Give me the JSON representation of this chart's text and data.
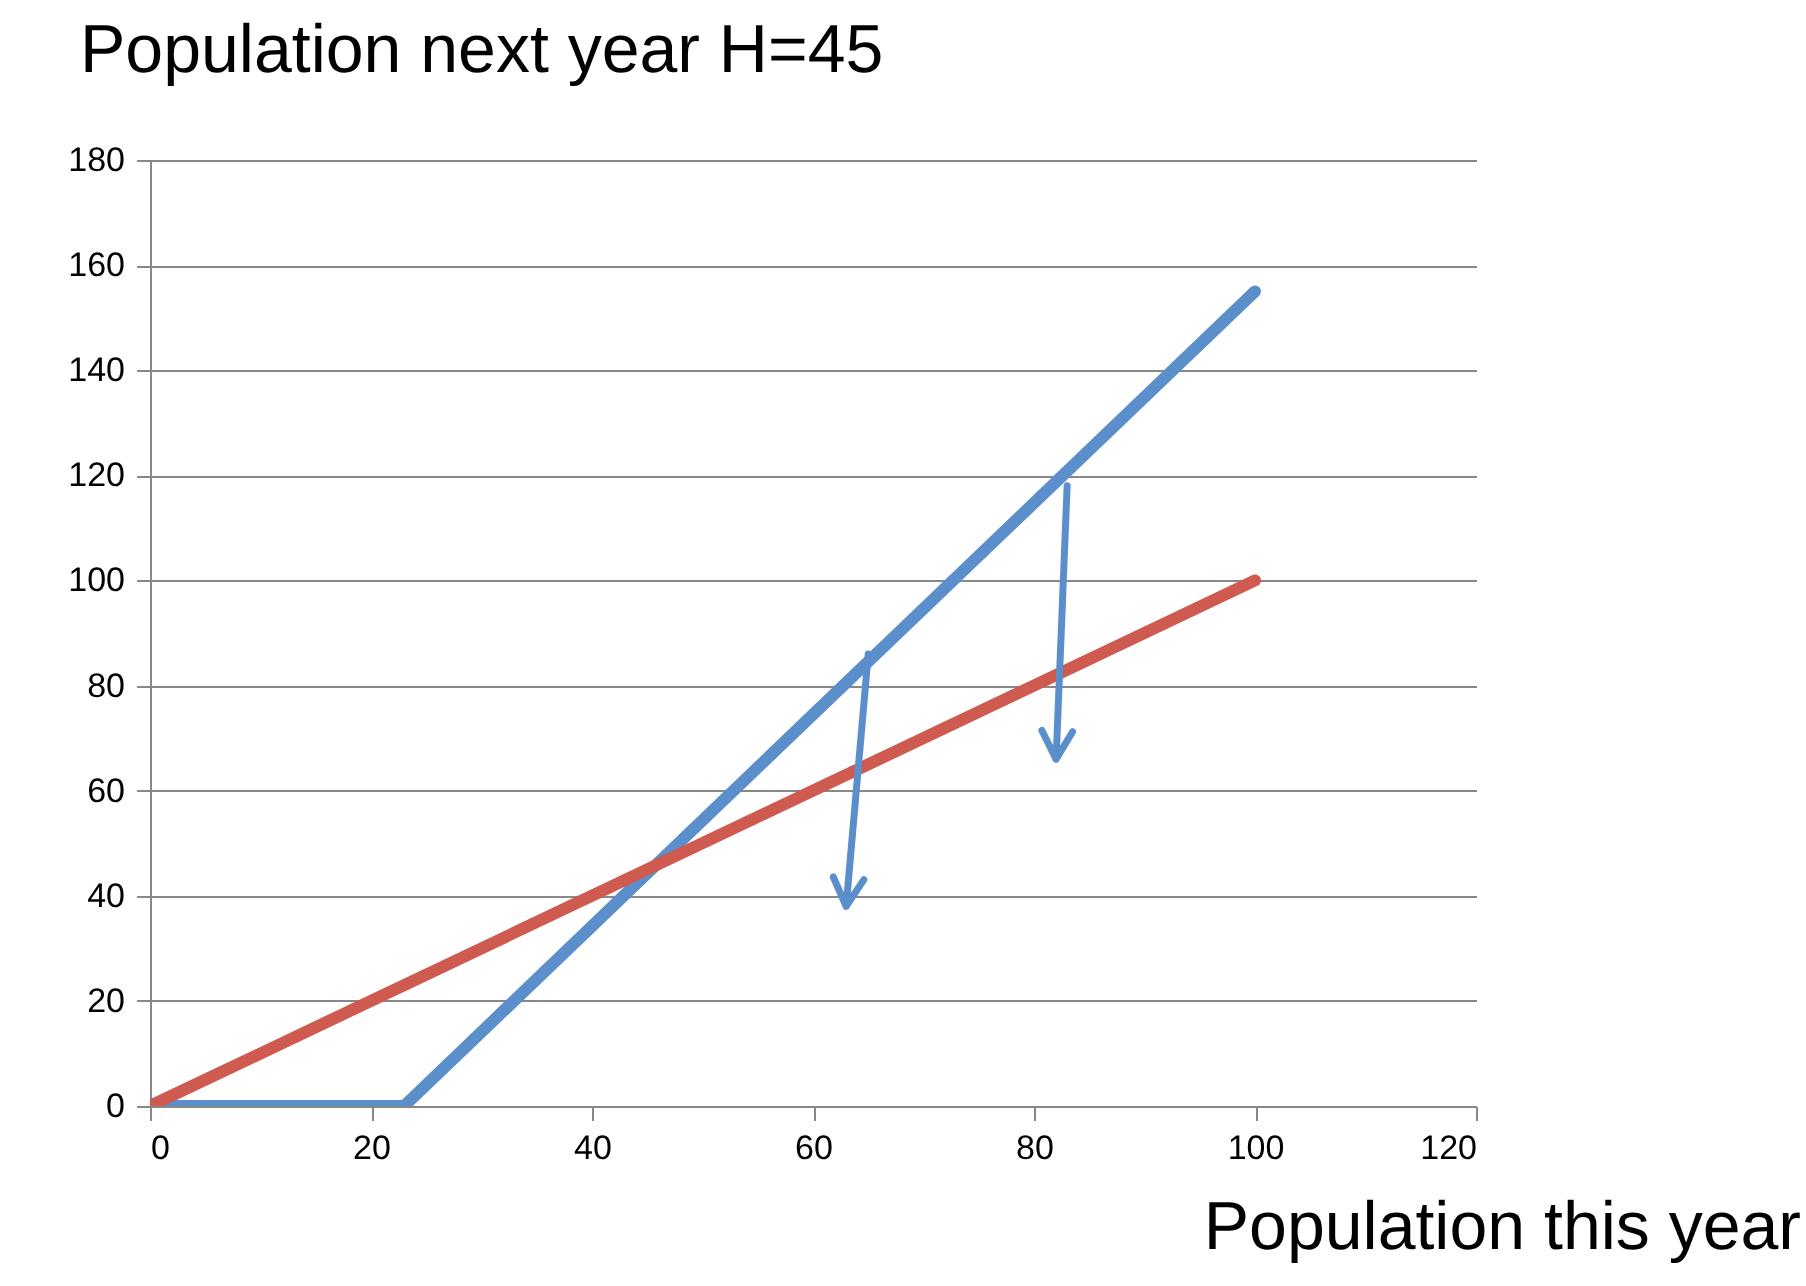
{
  "chart_data": {
    "type": "line",
    "title": "Population next year  H=45",
    "xlabel": "Population this year",
    "xlim": [
      0,
      120
    ],
    "xticks": [
      0,
      20,
      40,
      60,
      80,
      100,
      120
    ],
    "ylim": [
      0,
      180
    ],
    "yticks": [
      0,
      20,
      40,
      60,
      80,
      100,
      120,
      140,
      160,
      180
    ],
    "grid": "y",
    "legend": false,
    "marker": "none",
    "line_style": "solid",
    "series": [
      {
        "color": "#5b8fcb",
        "x": [
          0,
          23,
          100
        ],
        "values": [
          0,
          0,
          155
        ]
      },
      {
        "color": "#cf5a4f",
        "x": [
          0,
          100
        ],
        "values": [
          0,
          100
        ]
      }
    ]
  }
}
